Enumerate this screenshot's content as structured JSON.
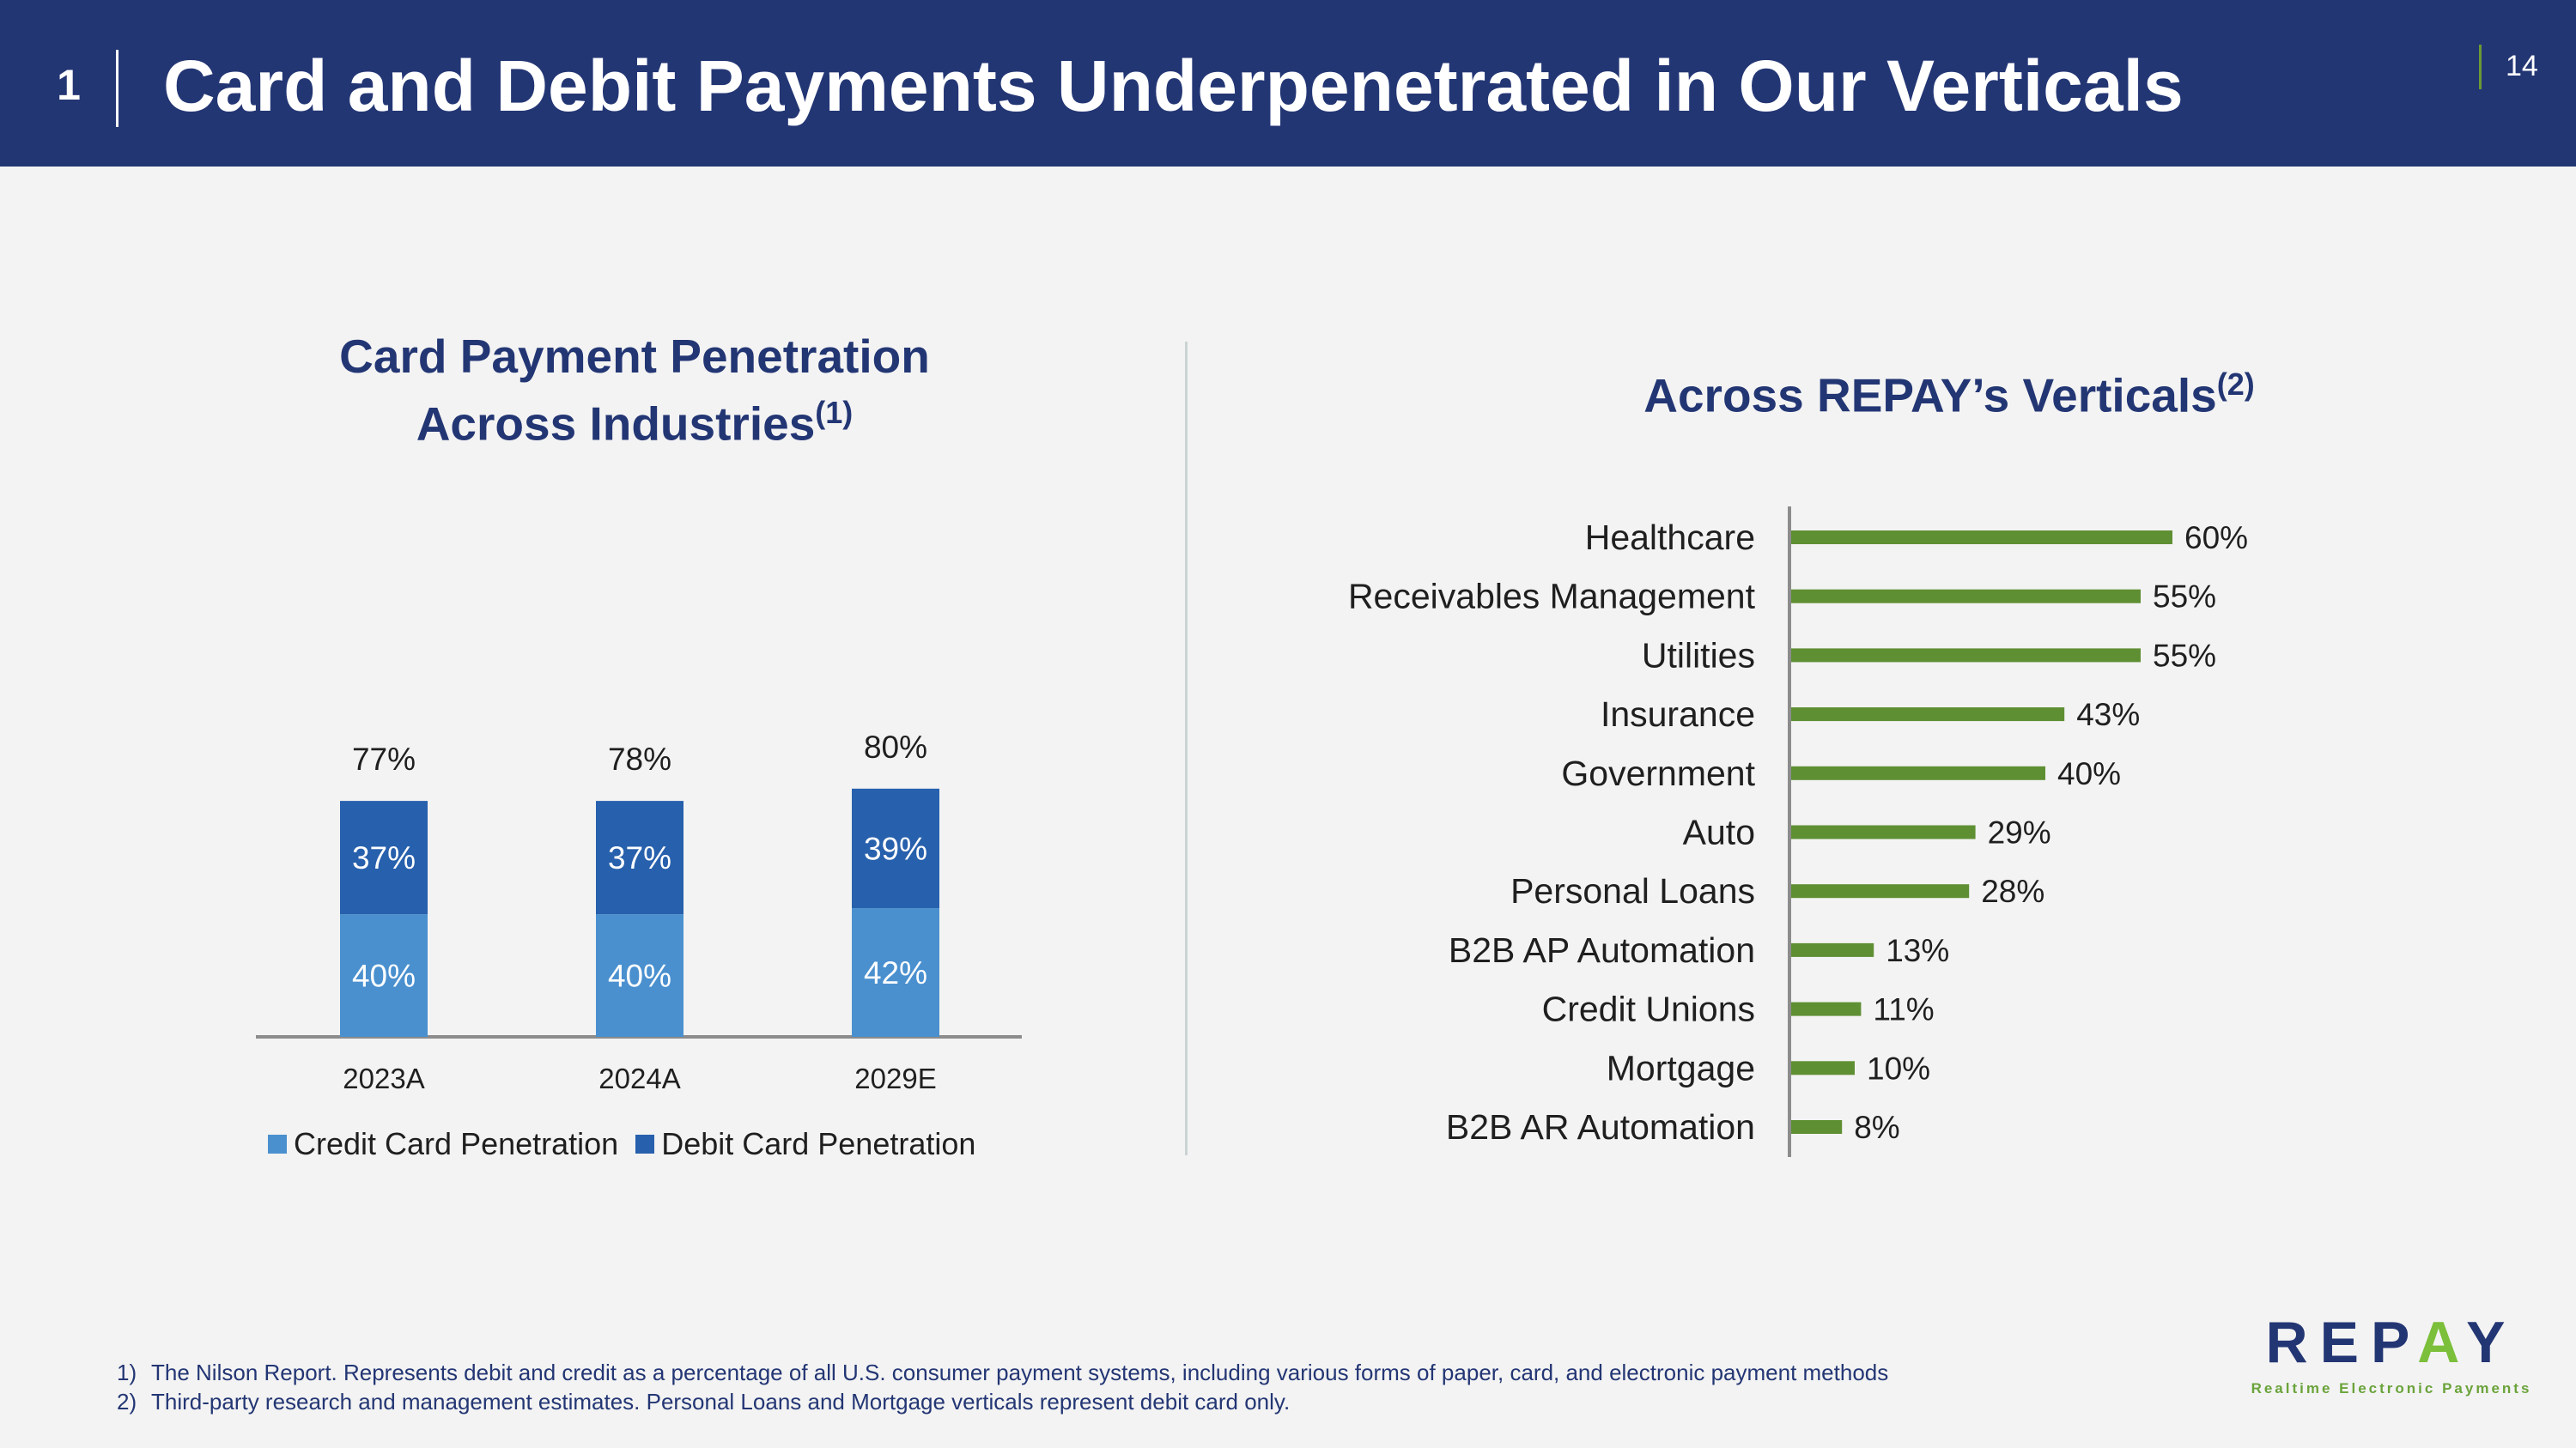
{
  "header": {
    "section_number": "1",
    "title": "Card and Debit Payments Underpenetrated in Our Verticals",
    "page_number": "14"
  },
  "left_panel": {
    "title_line1": "Card Payment Penetration",
    "title_line2": "Across Industries",
    "title_footnote": "(1)"
  },
  "right_panel": {
    "title": "Across REPAY’s Verticals",
    "title_footnote": "(2)"
  },
  "legend": {
    "credit_label": "Credit Card Penetration",
    "debit_label": "Debit Card Penetration"
  },
  "colors": {
    "header_bg": "#233674",
    "credit": "#4a90cf",
    "debit": "#2760ac",
    "vertical_bar": "#5f8f33",
    "title_text": "#233674"
  },
  "chart_data": [
    {
      "type": "bar",
      "stacked": true,
      "categories": [
        "2023A",
        "2024A",
        "2029E"
      ],
      "series": [
        {
          "name": "Credit Card Penetration",
          "values": [
            40,
            40,
            42
          ],
          "labels": [
            "40%",
            "40%",
            "42%"
          ]
        },
        {
          "name": "Debit Card Penetration",
          "values": [
            37,
            37,
            39
          ],
          "labels": [
            "37%",
            "37%",
            "39%"
          ]
        }
      ],
      "totals": [
        "77%",
        "78%",
        "80%"
      ],
      "title": "Card Payment Penetration Across Industries(1)",
      "ylim": [
        0,
        100
      ],
      "grid": false,
      "legend": "bottom"
    },
    {
      "type": "bar",
      "orientation": "horizontal",
      "categories": [
        "Healthcare",
        "Receivables Management",
        "Utilities",
        "Insurance",
        "Government",
        "Auto",
        "Personal Loans",
        "B2B AP Automation",
        "Credit Unions",
        "Mortgage",
        "B2B AR Automation"
      ],
      "values": [
        60,
        55,
        55,
        43,
        40,
        29,
        28,
        13,
        11,
        10,
        8
      ],
      "labels": [
        "60%",
        "55%",
        "55%",
        "43%",
        "40%",
        "29%",
        "28%",
        "13%",
        "11%",
        "10%",
        "8%"
      ],
      "title": "Across REPAY’s Verticals(2)",
      "xlim": [
        0,
        70
      ],
      "grid": false
    }
  ],
  "footnotes": [
    {
      "num": "1)",
      "text": "The Nilson Report. Represents debit and credit as a percentage of all U.S. consumer payment systems, including various forms of paper, card, and electronic payment methods"
    },
    {
      "num": "2)",
      "text": "Third-party research and management estimates. Personal Loans and Mortgage verticals represent debit card only."
    }
  ],
  "logo": {
    "word_part1": "REP",
    "word_accent": "A",
    "word_part2": "Y",
    "tagline": "Realtime Electronic Payments"
  }
}
